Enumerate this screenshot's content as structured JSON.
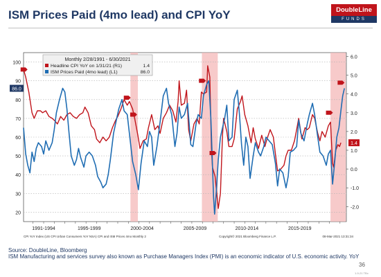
{
  "header": {
    "title": "ISM Prices Paid (4mo lead) and CPI YoY"
  },
  "logo": {
    "top": "DoubleLine",
    "bottom": "FUNDS"
  },
  "footer": {
    "source": "Source: DoubleLine, Bloomberg",
    "note": "ISM Manufacturing and services survey also known as Purchase Managers Index (PMI) is an economic indicator of U.S. economic activity. YoY",
    "page": "36",
    "stamp": "1-9-21 TBx"
  },
  "colors": {
    "cpi": "#c0141b",
    "ism": "#1f6db3",
    "shade": "#f4b8b8",
    "accent": "#c0141b",
    "navy": "#1f3864"
  },
  "chart_data": {
    "type": "line",
    "legend": {
      "header": "Monthly 2/28/1991 - 6/30/2021",
      "items": [
        {
          "label": "Headline CPI YoY on 1/31/21 (R1)",
          "value": "1.4"
        },
        {
          "label": "ISM Prices Paid (4mo lead) (L1)",
          "value": "86.0"
        }
      ]
    },
    "y_left": {
      "min": 15,
      "max": 105,
      "ticks": [
        20,
        30,
        40,
        50,
        60,
        70,
        80,
        90,
        100
      ]
    },
    "y_right": {
      "min": -2.8,
      "max": 6.2,
      "ticks": [
        "6.0",
        "5.0",
        "4.0",
        "3.0",
        "2.0",
        "1.0",
        "0.0",
        "-1.0",
        "-2.0"
      ]
    },
    "x_labels": [
      {
        "label": "1991-1994",
        "t": 1993
      },
      {
        "label": "1995-1999",
        "t": 1997.3
      },
      {
        "label": "2000-2004",
        "t": 2002.3
      },
      {
        "label": "2005-2009",
        "t": 2007.3
      },
      {
        "label": "2010-2014",
        "t": 2012.2
      },
      {
        "label": "2015-2019",
        "t": 2017.2
      }
    ],
    "x_range": [
      1991.1,
      2021.6
    ],
    "recessions": [
      [
        2001.2,
        2001.9
      ],
      [
        2007.95,
        2009.45
      ],
      [
        2020.1,
        2021.55
      ]
    ],
    "bottom_text": "CPI YoY Index (US CPI Urban Consumers YoY NSA) CPI and ISM Prices 4mo Monthly 2",
    "copyright": "Copyright© 2021 Bloomberg Finance L.P.",
    "timestamp": "08-Mar-2021 13:31:34",
    "end_labels": {
      "ism": "86.0",
      "cpi": "1.4"
    },
    "series": [
      {
        "name": "Headline CPI YoY",
        "axis": "right",
        "points": [
          [
            1991.1,
            5.3
          ],
          [
            1991.3,
            4.9
          ],
          [
            1991.6,
            4.1
          ],
          [
            1991.9,
            3.0
          ],
          [
            1992.1,
            2.7
          ],
          [
            1992.4,
            3.1
          ],
          [
            1992.7,
            3.1
          ],
          [
            1992.9,
            3.0
          ],
          [
            1993.2,
            3.1
          ],
          [
            1993.5,
            2.8
          ],
          [
            1993.8,
            2.7
          ],
          [
            1994.0,
            2.6
          ],
          [
            1994.3,
            2.4
          ],
          [
            1994.6,
            2.8
          ],
          [
            1994.9,
            2.6
          ],
          [
            1995.2,
            2.9
          ],
          [
            1995.5,
            3.0
          ],
          [
            1995.8,
            2.8
          ],
          [
            1996.1,
            2.7
          ],
          [
            1996.4,
            2.9
          ],
          [
            1996.7,
            3.0
          ],
          [
            1996.9,
            3.3
          ],
          [
            1997.2,
            3.0
          ],
          [
            1997.5,
            2.3
          ],
          [
            1997.8,
            2.1
          ],
          [
            1998.0,
            1.6
          ],
          [
            1998.3,
            1.4
          ],
          [
            1998.6,
            1.7
          ],
          [
            1998.9,
            1.5
          ],
          [
            1999.2,
            1.7
          ],
          [
            1999.5,
            2.2
          ],
          [
            1999.8,
            2.6
          ],
          [
            2000.0,
            2.8
          ],
          [
            2000.3,
            3.2
          ],
          [
            2000.6,
            3.7
          ],
          [
            2000.9,
            3.4
          ],
          [
            2001.1,
            3.6
          ],
          [
            2001.4,
            3.2
          ],
          [
            2001.6,
            2.7
          ],
          [
            2001.9,
            1.8
          ],
          [
            2002.1,
            1.1
          ],
          [
            2002.4,
            1.5
          ],
          [
            2002.7,
            1.6
          ],
          [
            2002.9,
            2.2
          ],
          [
            2003.2,
            2.9
          ],
          [
            2003.5,
            2.1
          ],
          [
            2003.8,
            2.3
          ],
          [
            2004.0,
            1.9
          ],
          [
            2004.3,
            2.7
          ],
          [
            2004.6,
            3.0
          ],
          [
            2004.9,
            3.4
          ],
          [
            2005.2,
            3.1
          ],
          [
            2005.5,
            2.5
          ],
          [
            2005.7,
            3.6
          ],
          [
            2005.8,
            4.7
          ],
          [
            2006.0,
            3.4
          ],
          [
            2006.3,
            3.5
          ],
          [
            2006.5,
            4.2
          ],
          [
            2006.7,
            2.1
          ],
          [
            2006.9,
            1.5
          ],
          [
            2007.2,
            2.4
          ],
          [
            2007.5,
            2.7
          ],
          [
            2007.7,
            2.4
          ],
          [
            2007.9,
            4.1
          ],
          [
            2008.1,
            4.0
          ],
          [
            2008.4,
            4.1
          ],
          [
            2008.5,
            5.5
          ],
          [
            2008.7,
            4.9
          ],
          [
            2008.85,
            1.1
          ],
          [
            2008.95,
            0.1
          ],
          [
            2009.2,
            -0.4
          ],
          [
            2009.5,
            -2.1
          ],
          [
            2009.7,
            -1.3
          ],
          [
            2009.9,
            1.8
          ],
          [
            2010.0,
            2.7
          ],
          [
            2010.3,
            2.0
          ],
          [
            2010.5,
            1.2
          ],
          [
            2010.8,
            1.2
          ],
          [
            2011.0,
            1.6
          ],
          [
            2011.3,
            3.2
          ],
          [
            2011.6,
            3.6
          ],
          [
            2011.75,
            3.9
          ],
          [
            2012.0,
            2.9
          ],
          [
            2012.3,
            2.3
          ],
          [
            2012.6,
            1.4
          ],
          [
            2012.8,
            2.2
          ],
          [
            2013.0,
            1.6
          ],
          [
            2013.3,
            1.1
          ],
          [
            2013.6,
            1.8
          ],
          [
            2013.9,
            1.2
          ],
          [
            2014.1,
            1.6
          ],
          [
            2014.4,
            2.1
          ],
          [
            2014.7,
            1.7
          ],
          [
            2014.9,
            0.8
          ],
          [
            2015.1,
            -0.1
          ],
          [
            2015.4,
            0.0
          ],
          [
            2015.7,
            0.2
          ],
          [
            2015.9,
            0.7
          ],
          [
            2016.1,
            1.0
          ],
          [
            2016.4,
            1.0
          ],
          [
            2016.7,
            1.5
          ],
          [
            2016.9,
            2.1
          ],
          [
            2017.1,
            2.7
          ],
          [
            2017.4,
            1.6
          ],
          [
            2017.7,
            2.2
          ],
          [
            2017.9,
            2.1
          ],
          [
            2018.1,
            2.2
          ],
          [
            2018.4,
            2.9
          ],
          [
            2018.6,
            2.7
          ],
          [
            2018.9,
            1.9
          ],
          [
            2019.1,
            1.5
          ],
          [
            2019.3,
            2.0
          ],
          [
            2019.6,
            1.7
          ],
          [
            2019.9,
            2.3
          ],
          [
            2020.1,
            2.5
          ],
          [
            2020.3,
            0.3
          ],
          [
            2020.4,
            0.1
          ],
          [
            2020.6,
            1.0
          ],
          [
            2020.8,
            1.3
          ],
          [
            2020.95,
            1.2
          ],
          [
            2021.08,
            1.4
          ]
        ]
      },
      {
        "name": "ISM Prices Paid (4mo lead)",
        "axis": "left",
        "points": [
          [
            1991.1,
            65
          ],
          [
            1991.3,
            51
          ],
          [
            1991.5,
            45
          ],
          [
            1991.7,
            41
          ],
          [
            1991.9,
            52
          ],
          [
            1992.1,
            47
          ],
          [
            1992.3,
            54
          ],
          [
            1992.5,
            57
          ],
          [
            1992.8,
            55
          ],
          [
            1993.0,
            51
          ],
          [
            1993.2,
            58
          ],
          [
            1993.5,
            53
          ],
          [
            1993.8,
            57
          ],
          [
            1994.0,
            64
          ],
          [
            1994.2,
            73
          ],
          [
            1994.5,
            80
          ],
          [
            1994.8,
            86
          ],
          [
            1995.0,
            84
          ],
          [
            1995.2,
            75
          ],
          [
            1995.4,
            62
          ],
          [
            1995.6,
            50
          ],
          [
            1995.9,
            45
          ],
          [
            1996.1,
            48
          ],
          [
            1996.3,
            54
          ],
          [
            1996.5,
            49
          ],
          [
            1996.8,
            44
          ],
          [
            1997.0,
            50
          ],
          [
            1997.3,
            52
          ],
          [
            1997.6,
            50
          ],
          [
            1997.9,
            45
          ],
          [
            1998.1,
            39
          ],
          [
            1998.4,
            36
          ],
          [
            1998.6,
            33
          ],
          [
            1998.9,
            35
          ],
          [
            1999.1,
            40
          ],
          [
            1999.3,
            48
          ],
          [
            1999.6,
            62
          ],
          [
            1999.9,
            70
          ],
          [
            2000.1,
            75
          ],
          [
            2000.4,
            80
          ],
          [
            2000.6,
            74
          ],
          [
            2000.9,
            72
          ],
          [
            2001.1,
            62
          ],
          [
            2001.4,
            47
          ],
          [
            2001.7,
            40
          ],
          [
            2001.95,
            32
          ],
          [
            2002.2,
            46
          ],
          [
            2002.5,
            58
          ],
          [
            2002.8,
            55
          ],
          [
            2003.0,
            63
          ],
          [
            2003.2,
            60
          ],
          [
            2003.4,
            45
          ],
          [
            2003.7,
            55
          ],
          [
            2004.0,
            68
          ],
          [
            2004.3,
            82
          ],
          [
            2004.6,
            86
          ],
          [
            2004.8,
            78
          ],
          [
            2005.1,
            72
          ],
          [
            2005.4,
            55
          ],
          [
            2005.6,
            62
          ],
          [
            2005.8,
            76
          ],
          [
            2006.0,
            70
          ],
          [
            2006.3,
            72
          ],
          [
            2006.6,
            78
          ],
          [
            2006.9,
            56
          ],
          [
            2007.1,
            55
          ],
          [
            2007.4,
            67
          ],
          [
            2007.6,
            72
          ],
          [
            2007.9,
            70
          ],
          [
            2008.1,
            82
          ],
          [
            2008.4,
            88
          ],
          [
            2008.6,
            90
          ],
          [
            2008.8,
            70
          ],
          [
            2008.95,
            45
          ],
          [
            2009.05,
            28
          ],
          [
            2009.15,
            19
          ],
          [
            2009.3,
            30
          ],
          [
            2009.5,
            48
          ],
          [
            2009.7,
            60
          ],
          [
            2009.9,
            65
          ],
          [
            2010.1,
            70
          ],
          [
            2010.3,
            77
          ],
          [
            2010.5,
            58
          ],
          [
            2010.8,
            60
          ],
          [
            2011.0,
            80
          ],
          [
            2011.3,
            85
          ],
          [
            2011.5,
            72
          ],
          [
            2011.7,
            56
          ],
          [
            2011.9,
            45
          ],
          [
            2012.1,
            60
          ],
          [
            2012.3,
            55
          ],
          [
            2012.5,
            38
          ],
          [
            2012.8,
            50
          ],
          [
            2013.0,
            57
          ],
          [
            2013.3,
            52
          ],
          [
            2013.5,
            50
          ],
          [
            2013.8,
            55
          ],
          [
            2014.0,
            60
          ],
          [
            2014.3,
            58
          ],
          [
            2014.6,
            56
          ],
          [
            2014.9,
            46
          ],
          [
            2015.1,
            34
          ],
          [
            2015.3,
            43
          ],
          [
            2015.6,
            41
          ],
          [
            2015.9,
            33
          ],
          [
            2016.1,
            39
          ],
          [
            2016.3,
            52
          ],
          [
            2016.6,
            53
          ],
          [
            2016.9,
            55
          ],
          [
            2017.1,
            69
          ],
          [
            2017.3,
            62
          ],
          [
            2017.6,
            58
          ],
          [
            2017.9,
            67
          ],
          [
            2018.1,
            72
          ],
          [
            2018.4,
            78
          ],
          [
            2018.6,
            72
          ],
          [
            2018.9,
            60
          ],
          [
            2019.1,
            52
          ],
          [
            2019.4,
            50
          ],
          [
            2019.7,
            45
          ],
          [
            2019.9,
            51
          ],
          [
            2020.1,
            53
          ],
          [
            2020.3,
            35
          ],
          [
            2020.5,
            47
          ],
          [
            2020.7,
            60
          ],
          [
            2020.9,
            65
          ],
          [
            2021.1,
            75
          ],
          [
            2021.25,
            82
          ],
          [
            2021.42,
            86
          ]
        ]
      }
    ]
  }
}
